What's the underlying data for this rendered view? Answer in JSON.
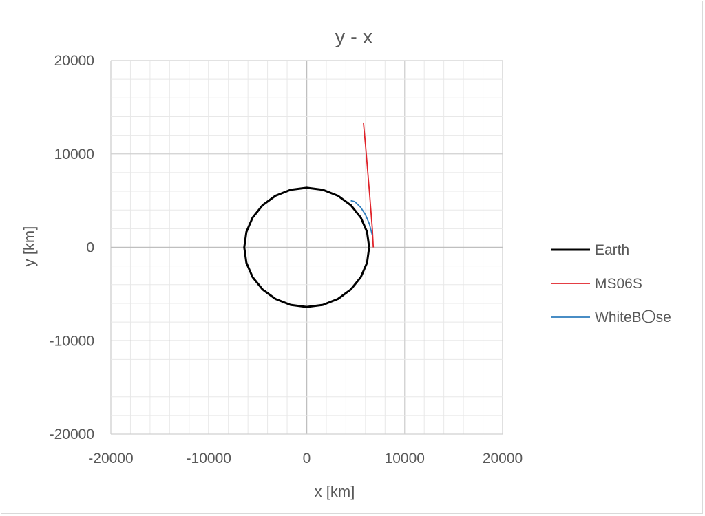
{
  "chart_data": {
    "type": "scatter",
    "title": "y - x",
    "xlabel": "x [km]",
    "ylabel": "y [km]",
    "xlim": [
      -20000,
      20000
    ],
    "ylim": [
      -20000,
      20000
    ],
    "major_step": 10000,
    "minor_step": 2000,
    "x_ticks": [
      "-20000",
      "-10000",
      "0",
      "10000",
      "20000"
    ],
    "y_ticks": [
      "20000",
      "10000",
      "0",
      "-10000",
      "-20000"
    ],
    "grid": true,
    "legend_position": "right",
    "series": [
      {
        "name": "Earth",
        "color": "#000000",
        "line_width": 3,
        "shape": "circle",
        "radius": 6378,
        "points": 24
      },
      {
        "name": "MS06S",
        "color": "#e0232a",
        "line_width": 1.8,
        "x": [
          6800,
          6700,
          6550,
          6400,
          6200,
          6000,
          5800
        ],
        "y": [
          0,
          2000,
          4000,
          6000,
          8500,
          11000,
          13300
        ]
      },
      {
        "name": "WhiteB〇se",
        "color": "#2e7dbd",
        "line_width": 1.8,
        "x": [
          6700,
          6400,
          6000,
          5500,
          4900,
          4500
        ],
        "y": [
          1300,
          2500,
          3500,
          4300,
          4900,
          5000
        ]
      }
    ]
  }
}
